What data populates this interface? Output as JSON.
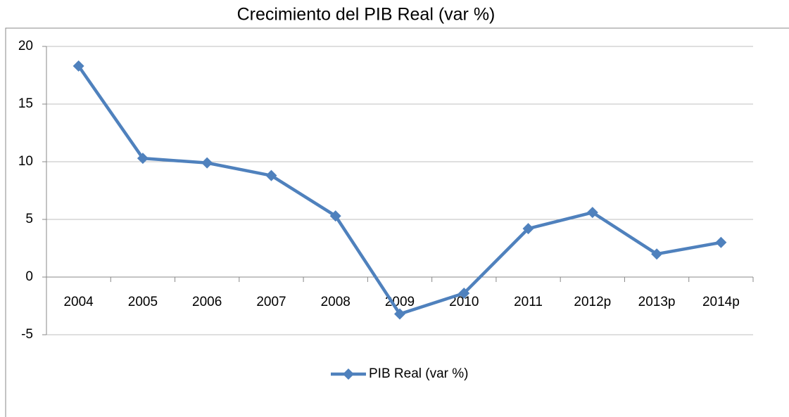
{
  "chart_data": {
    "type": "line",
    "title": "Crecimiento del PIB Real (var %)",
    "categories": [
      "2004",
      "2005",
      "2006",
      "2007",
      "2008",
      "2009",
      "2010",
      "2011",
      "2012p",
      "2013p",
      "2014p"
    ],
    "series": [
      {
        "name": "PIB Real (var %)",
        "color": "#4f81bd",
        "values": [
          18.3,
          10.3,
          9.9,
          8.8,
          5.3,
          -3.2,
          -1.4,
          4.2,
          5.6,
          2.0,
          3.0
        ]
      }
    ],
    "ylim": [
      -5,
      20
    ],
    "yticks": [
      -5,
      0,
      5,
      10,
      15,
      20
    ],
    "grid": true,
    "legend": "bottom"
  }
}
